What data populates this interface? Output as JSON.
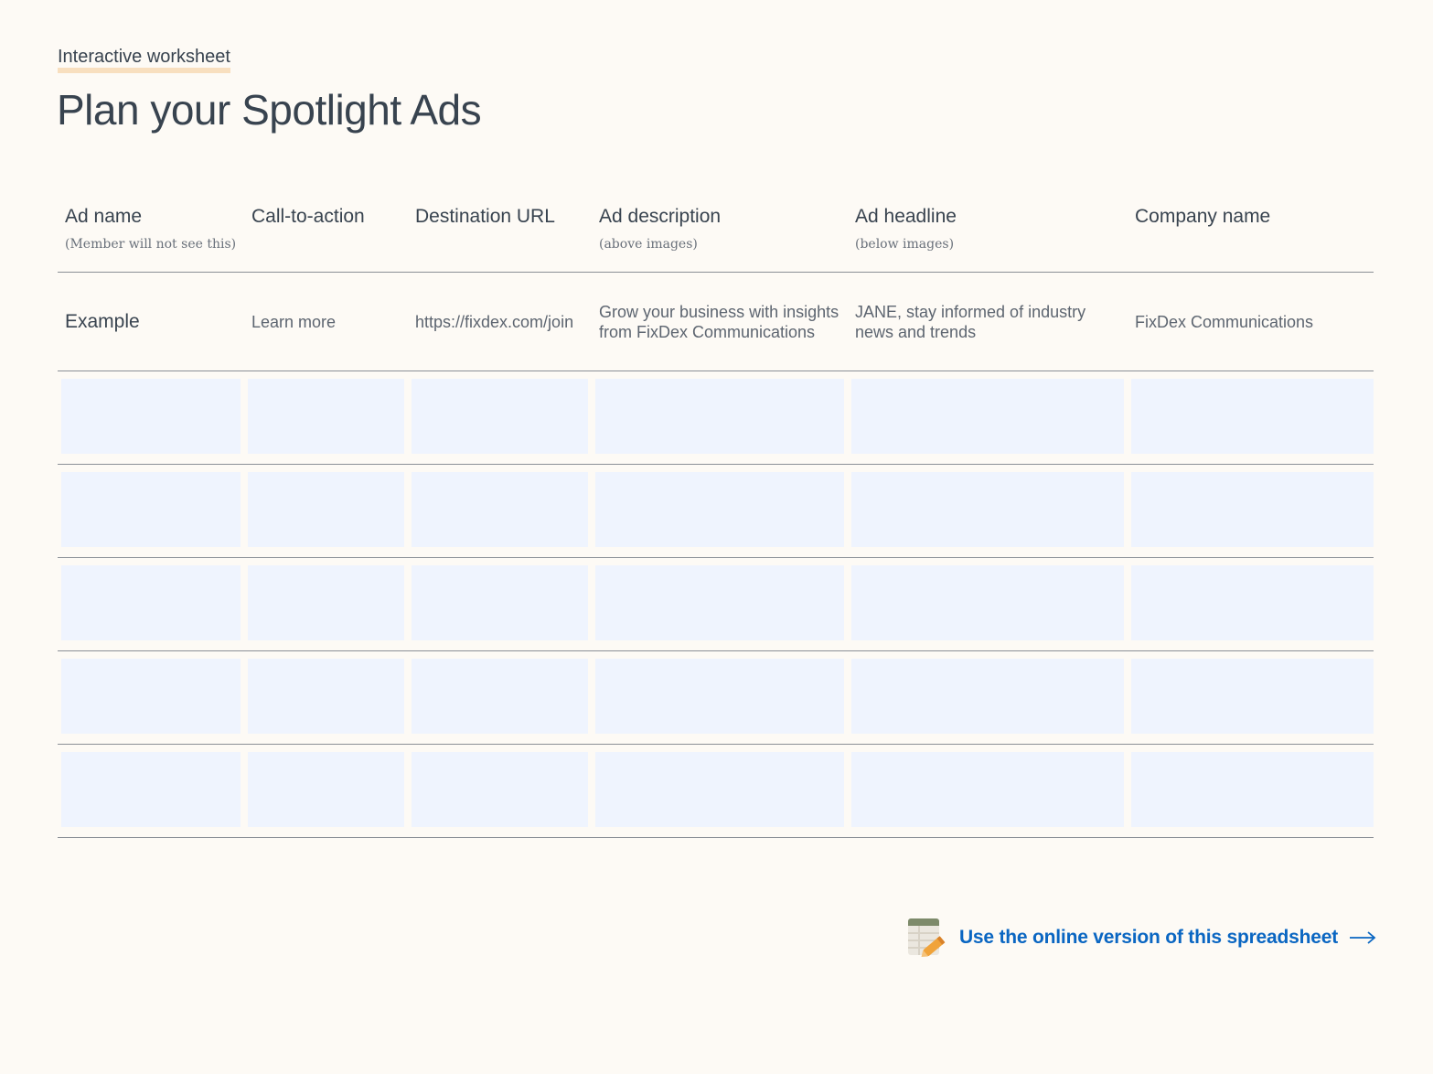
{
  "header": {
    "eyebrow": "Interactive worksheet",
    "title": "Plan your Spotlight Ads"
  },
  "table": {
    "columns": [
      {
        "label": "Ad name",
        "note": "(Member will not see this)"
      },
      {
        "label": "Call-to-action",
        "note": ""
      },
      {
        "label": "Destination URL",
        "note": ""
      },
      {
        "label": "Ad description",
        "note": "(above images)"
      },
      {
        "label": "Ad headline",
        "note": "(below images)"
      },
      {
        "label": "Company name",
        "note": ""
      }
    ],
    "example": [
      "Example",
      "Learn more",
      "https://fixdex.com/join",
      "Grow your business with insights from FixDex Communications",
      "JANE, stay informed of industry news and trends",
      "FixDex Communications"
    ],
    "empty_rows": 5
  },
  "footer": {
    "link_text": "Use the online version of this spreadsheet",
    "icon": "spreadsheet-edit-icon",
    "arrow_icon": "arrow-right-icon"
  },
  "colors": {
    "background": "#fdfaf5",
    "text": "#38434f",
    "input_fill": "#eff4fe",
    "link": "#0a66c2",
    "eyebrow_highlight": "#f8dfbf"
  }
}
